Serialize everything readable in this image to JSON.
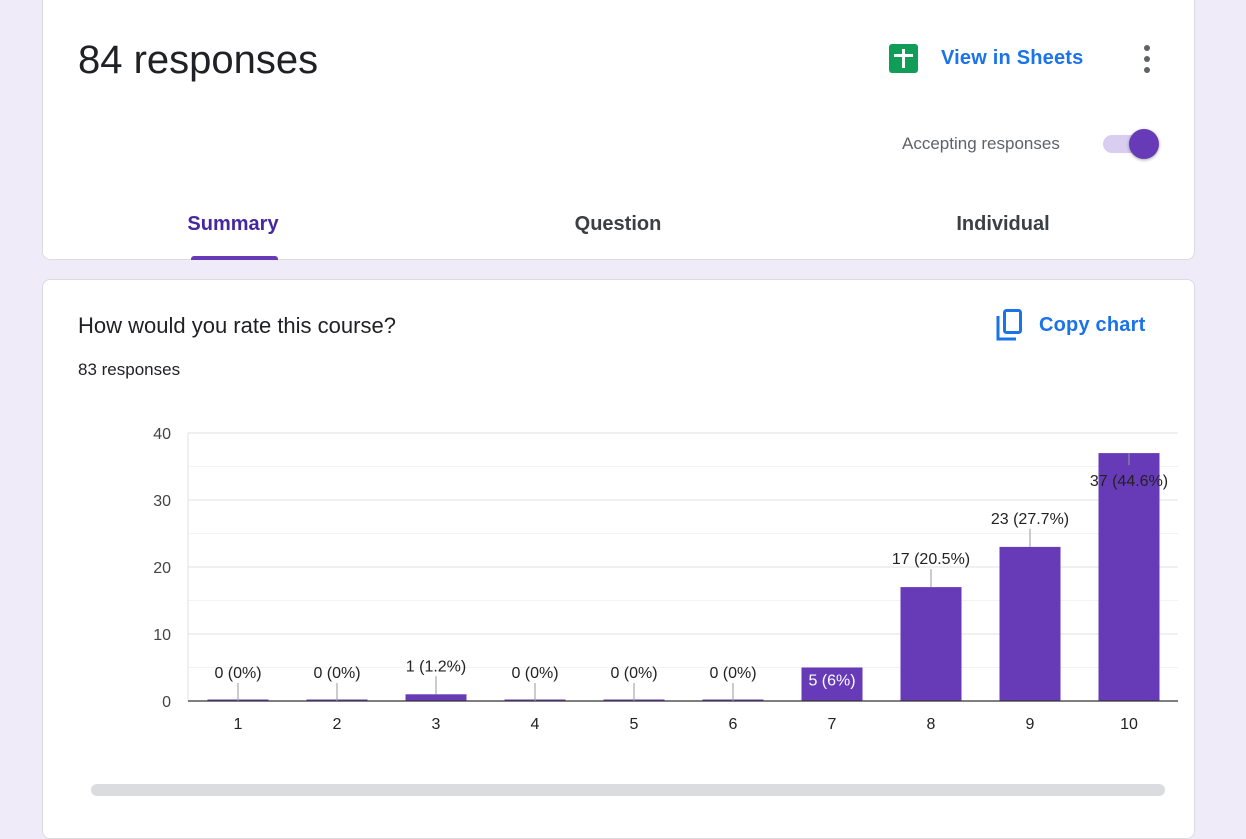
{
  "header": {
    "title": "84 responses",
    "sheets_label": "View in Sheets",
    "accepting_label": "Accepting responses",
    "accepting": true
  },
  "tabs": [
    {
      "label": "Summary",
      "active": true
    },
    {
      "label": "Question",
      "active": false
    },
    {
      "label": "Individual",
      "active": false
    }
  ],
  "question": {
    "title": "How would you rate this course?",
    "responses": "83 responses",
    "copy_label": "Copy chart"
  },
  "colors": {
    "accent": "#673ab7",
    "link": "#1a73e8",
    "sheets_green": "#0f9d58",
    "background": "#f0ebf8"
  },
  "icons": [
    "sheets-icon",
    "more-vert-icon",
    "copy-icon"
  ],
  "chart_data": {
    "type": "bar",
    "categories": [
      "1",
      "2",
      "3",
      "4",
      "5",
      "6",
      "7",
      "8",
      "9",
      "10"
    ],
    "values": [
      0,
      0,
      1,
      0,
      0,
      0,
      5,
      17,
      23,
      37
    ],
    "labels": [
      "0 (0%)",
      "0 (0%)",
      "1 (1.2%)",
      "0 (0%)",
      "0 (0%)",
      "0 (0%)",
      "5 (6%)",
      "17 (20.5%)",
      "23 (27.7%)",
      "37 (44.6%)"
    ],
    "yticks": [
      0,
      10,
      20,
      30,
      40
    ],
    "ylim": [
      0,
      40
    ],
    "grid": true,
    "bar_color": "#673ab7"
  }
}
